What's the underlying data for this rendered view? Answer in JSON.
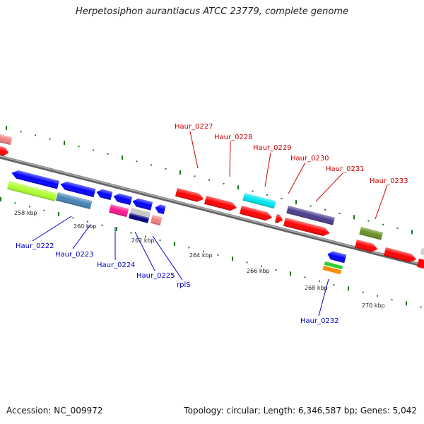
{
  "title": "Herpetosiphon aurantiacus ATCC 23779, complete genome",
  "footer": {
    "accession": "Accession: NC_009972",
    "topology": "Topology: circular; Length: 6,346,587 bp; Genes: 5,042"
  },
  "scale_labels": [
    "258 kbp",
    "260 kbp",
    "262 kbp",
    "264 kbp",
    "266 kbp",
    "268 kbp",
    "270 kbp"
  ],
  "genes_forward": [
    {
      "id": "haur-0227",
      "label": "Haur_0227",
      "color": "#ff0000"
    },
    {
      "id": "haur-0228",
      "label": "Haur_0228",
      "color": "#ff0000"
    },
    {
      "id": "haur-0229",
      "label": "Haur_0229",
      "color": "#00e5ee"
    },
    {
      "id": "haur-0230",
      "label": "Haur_0230",
      "color": "#483d8b"
    },
    {
      "id": "haur-0231",
      "label": "Haur_0231",
      "color": "#ff0000"
    },
    {
      "id": "haur-0233",
      "label": "Haur_0233",
      "color": "#6b8e23"
    }
  ],
  "genes_reverse": [
    {
      "id": "haur-0222",
      "label": "Haur_0222",
      "color": "#0000ff"
    },
    {
      "id": "haur-0223",
      "label": "Haur_0223",
      "color": "#4682b4"
    },
    {
      "id": "haur-0224",
      "label": "Haur_0224",
      "color": "#ff1493"
    },
    {
      "id": "haur-0225",
      "label": "Haur_0225",
      "color": "#000080"
    },
    {
      "id": "rpls",
      "label": "rplS",
      "color": "#f08080"
    },
    {
      "id": "haur-0232",
      "label": "Haur_0232",
      "color": "#0000ff"
    }
  ],
  "colors": {
    "forward_label": "#cc0000",
    "reverse_label": "#0000cc",
    "backbone": "#808080",
    "tick": "#1a7a1a"
  }
}
